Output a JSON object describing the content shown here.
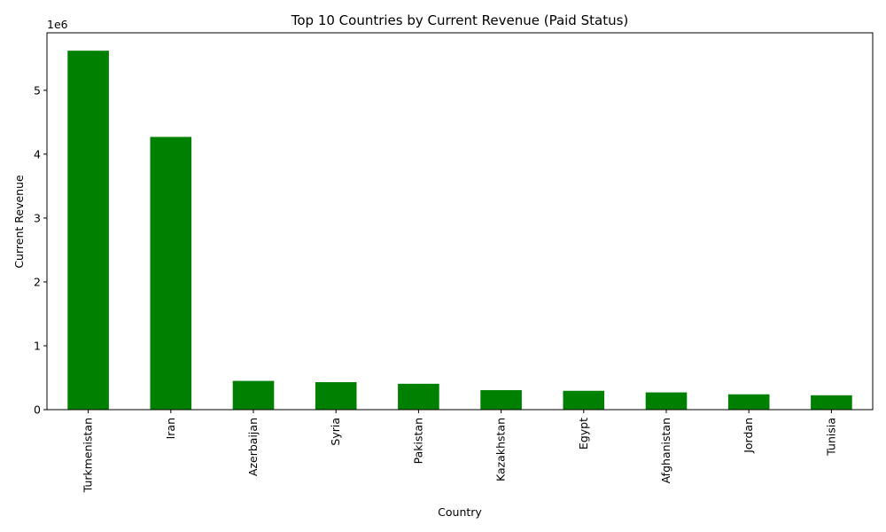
{
  "chart_data": {
    "type": "bar",
    "title": "Top 10 Countries by Current Revenue (Paid Status)",
    "xlabel": "Country",
    "ylabel": "Current Revenue",
    "y_offset_label": "1e6",
    "categories": [
      "Turkmenistan",
      "Iran",
      "Azerbaijan",
      "Syria",
      "Pakistan",
      "Kazakhstan",
      "Egypt",
      "Afghanistan",
      "Jordan",
      "Tunisia"
    ],
    "values": [
      5620000,
      4270000,
      450000,
      430000,
      405000,
      305000,
      295000,
      270000,
      240000,
      225000
    ],
    "ylim": [
      0,
      5900000
    ],
    "yticks": [
      0,
      1000000,
      2000000,
      3000000,
      4000000,
      5000000
    ],
    "ytick_labels": [
      "0",
      "1",
      "2",
      "3",
      "4",
      "5"
    ],
    "bar_color": "#008000",
    "grid": false,
    "legend": "none"
  }
}
